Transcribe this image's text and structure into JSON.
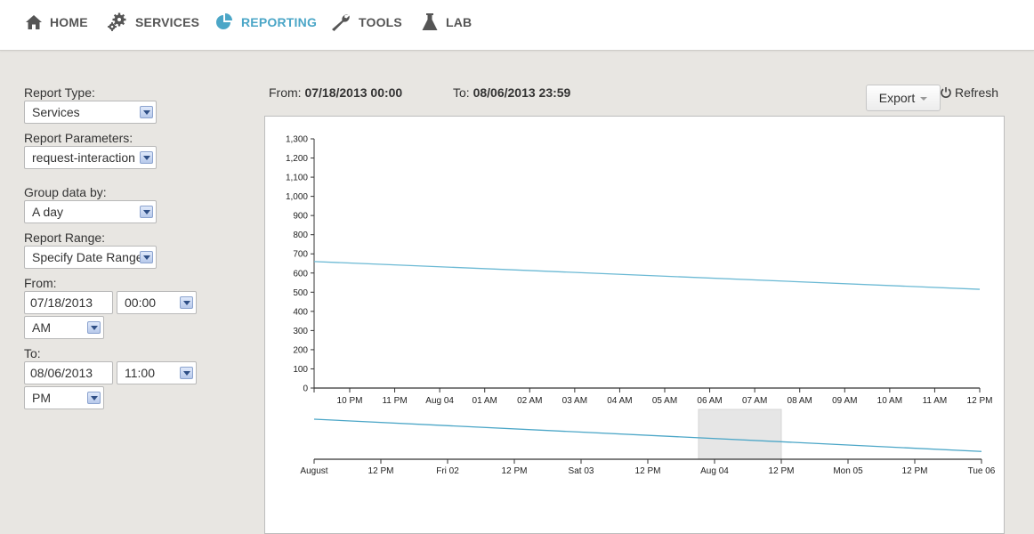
{
  "nav": {
    "items": [
      {
        "label": "HOME",
        "icon": "home-icon"
      },
      {
        "label": "SERVICES",
        "icon": "gears-icon"
      },
      {
        "label": "REPORTING",
        "icon": "pie-chart-icon",
        "active": true
      },
      {
        "label": "TOOLS",
        "icon": "wrench-icon"
      },
      {
        "label": "LAB",
        "icon": "flask-icon"
      }
    ],
    "active_color": "#4ba6c7"
  },
  "sidebar": {
    "report_type_label": "Report Type:",
    "report_type_value": "Services",
    "report_params_label": "Report Parameters:",
    "report_params_value": "request-interaction",
    "group_by_label": "Group data by:",
    "group_by_value": "A day",
    "report_range_label": "Report Range:",
    "report_range_value": "Specify Date Range",
    "from_label": "From:",
    "from_date": "07/18/2013",
    "from_time": "00:00",
    "from_ampm": "AM",
    "to_label": "To:",
    "to_date": "08/06/2013",
    "to_time": "11:00",
    "to_ampm": "PM"
  },
  "header": {
    "from_prefix": "From:",
    "from_value": "07/18/2013 00:00",
    "to_prefix": "To:",
    "to_value": "08/06/2013 23:59",
    "export_label": "Export",
    "refresh_label": "Refresh"
  },
  "chart_data": [
    {
      "type": "line",
      "title": "",
      "xlabel": "",
      "ylabel": "",
      "x_tick_labels": [
        "10 PM",
        "11 PM",
        "Aug 04",
        "01 AM",
        "02 AM",
        "03 AM",
        "04 AM",
        "05 AM",
        "06 AM",
        "07 AM",
        "08 AM",
        "09 AM",
        "10 AM",
        "11 AM",
        "12 PM"
      ],
      "y_ticks": [
        0,
        100,
        200,
        300,
        400,
        500,
        600,
        700,
        800,
        900,
        1000,
        1100,
        1200,
        1300
      ],
      "y_tick_labels": [
        "0",
        "100",
        "200",
        "300",
        "400",
        "500",
        "600",
        "700",
        "800",
        "900",
        "1,000",
        "1,100",
        "1,200",
        "1,300"
      ],
      "ylim": [
        0,
        1300
      ],
      "series": [
        {
          "x": [
            "Aug 03 09:00 PM",
            "Aug 04 12:00 PM"
          ],
          "values": [
            660,
            515
          ],
          "color": "#6bb9d4"
        }
      ],
      "grid": false
    },
    {
      "type": "line",
      "title": "",
      "x_tick_labels": [
        "August",
        "12 PM",
        "Fri 02",
        "12 PM",
        "Sat 03",
        "12 PM",
        "Aug 04",
        "12 PM",
        "Mon 05",
        "12 PM",
        "Tue 06"
      ],
      "series": [
        {
          "x": [
            "Aug 01 00:00",
            "Aug 06 00:00"
          ],
          "values": [
            660,
            515
          ],
          "color": "#4ba6c7"
        }
      ],
      "selected_window": [
        "Aug 03 09:00 PM",
        "Aug 04 12:00 PM"
      ],
      "grid": false
    }
  ]
}
